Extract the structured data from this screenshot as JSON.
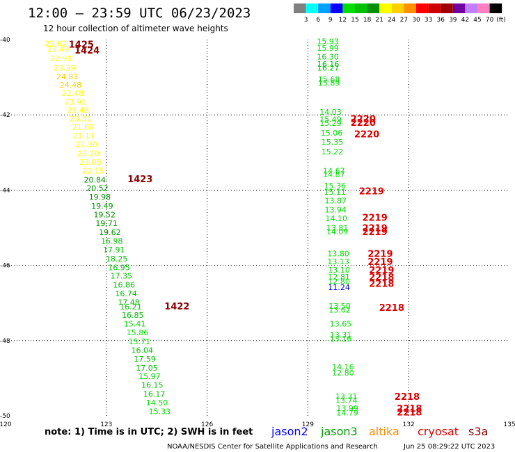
{
  "header": {
    "title": "12:00 – 23:59 UTC 06/23/2023",
    "subtitle": "12 hour collection of altimeter wave heights"
  },
  "footer": {
    "note": "note: 1) Time is in UTC; 2) SWH is in feet",
    "credit": "NOAA/NESDIS Center for Satellite Applications and Research",
    "timestamp": "Jun 25 08:29:22 UTC 2023"
  },
  "satellites": [
    {
      "name": "jason2",
      "color": "#0000ff"
    },
    {
      "name": "jason3",
      "color": "#00a000"
    },
    {
      "name": "altika",
      "color": "#ff8c00"
    },
    {
      "name": "cryosat",
      "color": "#dd0000"
    },
    {
      "name": "s3a",
      "color": "#8b0000"
    }
  ],
  "chart_data": {
    "type": "scatter",
    "title": "12:00 – 23:59 UTC 06/23/2023",
    "subtitle": "12 hour collection of altimeter wave heights",
    "xlim": [
      120,
      135
    ],
    "ylim": [
      -50,
      -40
    ],
    "x_ticks": [
      "120",
      "123",
      "126",
      "129",
      "132",
      "135"
    ],
    "y_ticks": [
      "-40",
      "-42",
      "-44",
      "-46",
      "-48",
      "-50"
    ],
    "grid": true,
    "color_scale": {
      "unit": "(ft)",
      "labels": [
        "3",
        "6",
        "9",
        "12",
        "15",
        "18",
        "21",
        "24",
        "27",
        "30",
        "33",
        "36",
        "39",
        "42",
        "45",
        "70"
      ],
      "colors": [
        "#808080",
        "#00ffff",
        "#00a0ff",
        "#0000ff",
        "#00dd00",
        "#00c000",
        "#009000",
        "#ffff00",
        "#ffd000",
        "#ff9000",
        "#ff0000",
        "#d00000",
        "#a00000",
        "#7000a0",
        "#c080ff",
        "#ff80c0",
        "#000000"
      ]
    },
    "points": [
      {
        "x": 121.17,
        "y": -40.1,
        "v": "22.62",
        "c": "#ffff00"
      },
      {
        "x": 121.24,
        "y": -40.25,
        "v": "22.49",
        "c": "#ffff00"
      },
      {
        "x": 121.32,
        "y": -40.5,
        "v": "22.90",
        "c": "#ffff00"
      },
      {
        "x": 121.43,
        "y": -40.75,
        "v": "23.39",
        "c": "#ffff00"
      },
      {
        "x": 121.51,
        "y": -40.98,
        "v": "24.83",
        "c": "#ffd000"
      },
      {
        "x": 121.61,
        "y": -41.2,
        "v": "24.48",
        "c": "#ffd000"
      },
      {
        "x": 121.67,
        "y": -41.42,
        "v": "22.48",
        "c": "#ffff00"
      },
      {
        "x": 121.75,
        "y": -41.65,
        "v": "23.91",
        "c": "#ffff00"
      },
      {
        "x": 121.83,
        "y": -41.88,
        "v": "21.48",
        "c": "#ffff00"
      },
      {
        "x": 121.91,
        "y": -42.1,
        "v": "23.51",
        "c": "#ffff00"
      },
      {
        "x": 121.98,
        "y": -42.32,
        "v": "21.60",
        "c": "#ffff00"
      },
      {
        "x": 122.0,
        "y": -42.55,
        "v": "21.11",
        "c": "#ffff00"
      },
      {
        "x": 122.08,
        "y": -42.78,
        "v": "22.30",
        "c": "#ffff00"
      },
      {
        "x": 122.14,
        "y": -43.02,
        "v": "22.20",
        "c": "#ffff00"
      },
      {
        "x": 122.2,
        "y": -43.25,
        "v": "22.08",
        "c": "#ffff00"
      },
      {
        "x": 122.28,
        "y": -43.48,
        "v": "22.15",
        "c": "#ffff00"
      },
      {
        "x": 122.33,
        "y": -43.72,
        "v": "20.84",
        "c": "#009000"
      },
      {
        "x": 122.41,
        "y": -43.95,
        "v": "20.52",
        "c": "#009000"
      },
      {
        "x": 122.48,
        "y": -44.18,
        "v": "19.98",
        "c": "#009000"
      },
      {
        "x": 122.55,
        "y": -44.42,
        "v": "19.49",
        "c": "#009000"
      },
      {
        "x": 122.62,
        "y": -44.65,
        "v": "19.52",
        "c": "#009000"
      },
      {
        "x": 122.68,
        "y": -44.88,
        "v": "19.71",
        "c": "#009000"
      },
      {
        "x": 122.78,
        "y": -45.12,
        "v": "19.62",
        "c": "#009000"
      },
      {
        "x": 122.84,
        "y": -45.35,
        "v": "16.98",
        "c": "#00c000"
      },
      {
        "x": 122.9,
        "y": -45.58,
        "v": "17.91",
        "c": "#00c000"
      },
      {
        "x": 122.98,
        "y": -45.82,
        "v": "18.25",
        "c": "#00c000"
      },
      {
        "x": 123.05,
        "y": -46.05,
        "v": "16.95",
        "c": "#00c000"
      },
      {
        "x": 123.12,
        "y": -46.28,
        "v": "17.35",
        "c": "#00c000"
      },
      {
        "x": 123.2,
        "y": -46.52,
        "v": "16.86",
        "c": "#00c000"
      },
      {
        "x": 123.26,
        "y": -46.75,
        "v": "16.74",
        "c": "#00c000"
      },
      {
        "x": 123.34,
        "y": -46.98,
        "v": "17.48",
        "c": "#00c000"
      },
      {
        "x": 123.4,
        "y": -47.1,
        "v": "16.21",
        "c": "#00c000"
      },
      {
        "x": 123.46,
        "y": -47.32,
        "v": "16.85",
        "c": "#00c000"
      },
      {
        "x": 123.52,
        "y": -47.55,
        "v": "15.41",
        "c": "#00dd00"
      },
      {
        "x": 123.6,
        "y": -47.78,
        "v": "15.86",
        "c": "#00dd00"
      },
      {
        "x": 123.66,
        "y": -48.02,
        "v": "15.71",
        "c": "#00dd00"
      },
      {
        "x": 123.74,
        "y": -48.25,
        "v": "16.04",
        "c": "#00c000"
      },
      {
        "x": 123.82,
        "y": -48.48,
        "v": "17.59",
        "c": "#00c000"
      },
      {
        "x": 123.88,
        "y": -48.72,
        "v": "17.05",
        "c": "#00c000"
      },
      {
        "x": 123.96,
        "y": -48.95,
        "v": "15.97",
        "c": "#00dd00"
      },
      {
        "x": 124.04,
        "y": -49.18,
        "v": "16.15",
        "c": "#00c000"
      },
      {
        "x": 124.1,
        "y": -49.42,
        "v": "16.17",
        "c": "#00c000"
      },
      {
        "x": 124.18,
        "y": -49.65,
        "v": "14.50",
        "c": "#00dd00"
      },
      {
        "x": 124.26,
        "y": -49.88,
        "v": "15.33",
        "c": "#00dd00"
      },
      {
        "x": 129.27,
        "y": -40.05,
        "v": "15.93",
        "c": "#00dd00"
      },
      {
        "x": 129.27,
        "y": -40.22,
        "v": "15.99",
        "c": "#00dd00"
      },
      {
        "x": 129.27,
        "y": -40.45,
        "v": "16.30",
        "c": "#00c000"
      },
      {
        "x": 129.28,
        "y": -40.65,
        "v": "16.16",
        "c": "#00c000"
      },
      {
        "x": 129.28,
        "y": -40.75,
        "v": "16.27",
        "c": "#00c000"
      },
      {
        "x": 129.3,
        "y": -41.05,
        "v": "15.68",
        "c": "#00dd00"
      },
      {
        "x": 129.3,
        "y": -41.15,
        "v": "15.89",
        "c": "#00dd00"
      },
      {
        "x": 129.35,
        "y": -41.92,
        "v": "14.03",
        "c": "#00dd00"
      },
      {
        "x": 129.35,
        "y": -42.12,
        "v": "15.49",
        "c": "#00dd00"
      },
      {
        "x": 129.35,
        "y": -42.22,
        "v": "15.29",
        "c": "#00dd00"
      },
      {
        "x": 129.38,
        "y": -42.48,
        "v": "15.06",
        "c": "#00dd00"
      },
      {
        "x": 129.4,
        "y": -42.72,
        "v": "15.35",
        "c": "#00dd00"
      },
      {
        "x": 129.4,
        "y": -42.98,
        "v": "15.22",
        "c": "#00dd00"
      },
      {
        "x": 129.45,
        "y": -43.48,
        "v": "14.67",
        "c": "#00dd00"
      },
      {
        "x": 129.45,
        "y": -43.58,
        "v": "14.87",
        "c": "#00dd00"
      },
      {
        "x": 129.48,
        "y": -43.88,
        "v": "15.36",
        "c": "#00dd00"
      },
      {
        "x": 129.48,
        "y": -44.05,
        "v": "15.11",
        "c": "#00dd00"
      },
      {
        "x": 129.5,
        "y": -44.28,
        "v": "13.87",
        "c": "#00dd00"
      },
      {
        "x": 129.5,
        "y": -44.52,
        "v": "13.94",
        "c": "#00dd00"
      },
      {
        "x": 129.52,
        "y": -44.75,
        "v": "14.10",
        "c": "#00dd00"
      },
      {
        "x": 129.55,
        "y": -45.0,
        "v": "13.81",
        "c": "#00dd00"
      },
      {
        "x": 129.55,
        "y": -45.1,
        "v": "14.09",
        "c": "#00dd00"
      },
      {
        "x": 129.58,
        "y": -45.68,
        "v": "13.80",
        "c": "#00dd00"
      },
      {
        "x": 129.58,
        "y": -45.9,
        "v": "13.13",
        "c": "#00dd00"
      },
      {
        "x": 129.6,
        "y": -46.12,
        "v": "13.10",
        "c": "#00dd00"
      },
      {
        "x": 129.6,
        "y": -46.3,
        "v": "12.81",
        "c": "#00dd00"
      },
      {
        "x": 129.6,
        "y": -46.42,
        "v": "12.80",
        "c": "#00dd00"
      },
      {
        "x": 129.6,
        "y": -46.58,
        "v": "11.24",
        "c": "#0000ff"
      },
      {
        "x": 129.62,
        "y": -47.08,
        "v": "13.50",
        "c": "#00dd00"
      },
      {
        "x": 129.62,
        "y": -47.18,
        "v": "13.62",
        "c": "#00dd00"
      },
      {
        "x": 129.65,
        "y": -47.55,
        "v": "13.65",
        "c": "#00dd00"
      },
      {
        "x": 129.65,
        "y": -47.85,
        "v": "13.31",
        "c": "#00dd00"
      },
      {
        "x": 129.65,
        "y": -47.95,
        "v": "13.16",
        "c": "#00dd00"
      },
      {
        "x": 129.72,
        "y": -48.7,
        "v": "14.16",
        "c": "#00dd00"
      },
      {
        "x": 129.72,
        "y": -48.85,
        "v": "12.80",
        "c": "#00dd00"
      },
      {
        "x": 129.82,
        "y": -49.48,
        "v": "13.31",
        "c": "#00dd00"
      },
      {
        "x": 129.82,
        "y": -49.58,
        "v": "13.74",
        "c": "#00dd00"
      },
      {
        "x": 129.85,
        "y": -49.8,
        "v": "13.99",
        "c": "#00dd00"
      },
      {
        "x": 129.85,
        "y": -49.92,
        "v": "14.79",
        "c": "#00dd00"
      }
    ],
    "pass_labels": [
      {
        "x": 121.88,
        "y": -40.12,
        "t": "1425",
        "c": "#8b0000"
      },
      {
        "x": 122.05,
        "y": -40.28,
        "t": "1424",
        "c": "#8b0000"
      },
      {
        "x": 123.63,
        "y": -43.7,
        "t": "1423",
        "c": "#8b0000"
      },
      {
        "x": 124.73,
        "y": -47.08,
        "t": "1422",
        "c": "#8b0000"
      },
      {
        "x": 130.27,
        "y": -42.1,
        "t": "2220",
        "c": "#dd0000"
      },
      {
        "x": 130.27,
        "y": -42.2,
        "t": "2220",
        "c": "#dd0000"
      },
      {
        "x": 130.38,
        "y": -42.5,
        "t": "2220",
        "c": "#dd0000"
      },
      {
        "x": 130.52,
        "y": -44.02,
        "t": "2219",
        "c": "#dd0000"
      },
      {
        "x": 130.62,
        "y": -44.72,
        "t": "2219",
        "c": "#dd0000"
      },
      {
        "x": 130.62,
        "y": -45.0,
        "t": "2219",
        "c": "#dd0000"
      },
      {
        "x": 130.62,
        "y": -45.1,
        "t": "2219",
        "c": "#dd0000"
      },
      {
        "x": 130.78,
        "y": -45.68,
        "t": "2219",
        "c": "#dd0000"
      },
      {
        "x": 130.78,
        "y": -45.9,
        "t": "2219",
        "c": "#dd0000"
      },
      {
        "x": 130.82,
        "y": -46.12,
        "t": "2219",
        "c": "#dd0000"
      },
      {
        "x": 130.82,
        "y": -46.3,
        "t": "2218",
        "c": "#dd0000"
      },
      {
        "x": 130.82,
        "y": -46.48,
        "t": "2218",
        "c": "#dd0000"
      },
      {
        "x": 131.12,
        "y": -47.12,
        "t": "2218",
        "c": "#dd0000"
      },
      {
        "x": 131.58,
        "y": -49.48,
        "t": "2218",
        "c": "#dd0000"
      },
      {
        "x": 131.65,
        "y": -49.8,
        "t": "2218",
        "c": "#dd0000"
      },
      {
        "x": 131.65,
        "y": -49.9,
        "t": "2218",
        "c": "#dd0000"
      }
    ]
  }
}
